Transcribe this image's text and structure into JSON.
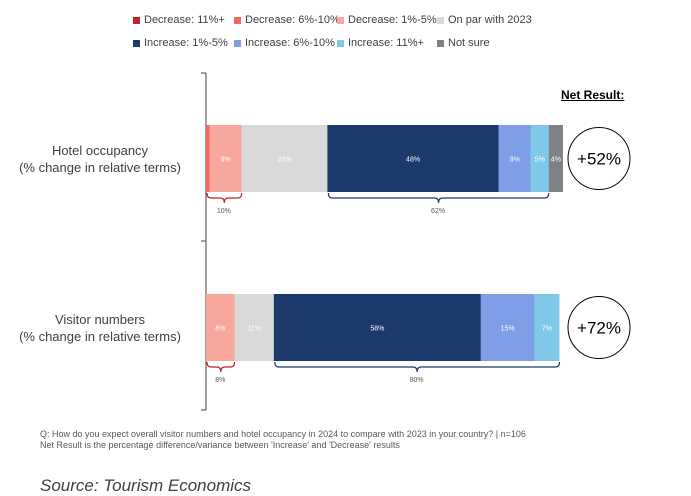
{
  "legend": [
    {
      "label": "Decrease: 11%+",
      "color": "#c0232b"
    },
    {
      "label": "Decrease: 6%-10%",
      "color": "#f26a5b"
    },
    {
      "label": "Decrease: 1%-5%",
      "color": "#f8a79c"
    },
    {
      "label": "On par with 2023",
      "color": "#d9d9d9"
    },
    {
      "label": "Increase: 1%-5%",
      "color": "#1b3a6b"
    },
    {
      "label": "Increase: 6%-10%",
      "color": "#7f9ee8"
    },
    {
      "label": "Increase: 11%+",
      "color": "#7fc8e8"
    },
    {
      "label": "Not sure",
      "color": "#7f8188"
    }
  ],
  "net_result_title": "Net Result:",
  "chart_data": {
    "type": "bar",
    "orientation": "horizontal",
    "stacked": true,
    "categories": [
      [
        "Hotel occupancy",
        "(% change in relative terms)"
      ],
      [
        "Visitor numbers",
        "(% change in relative terms)"
      ]
    ],
    "series": [
      {
        "name": "Decrease: 11%+",
        "values": [
          0,
          0
        ]
      },
      {
        "name": "Decrease: 6%-10%",
        "values": [
          1,
          0
        ]
      },
      {
        "name": "Decrease: 1%-5%",
        "values": [
          9,
          8
        ]
      },
      {
        "name": "On par with 2023",
        "values": [
          24,
          11
        ]
      },
      {
        "name": "Increase: 1%-5%",
        "values": [
          48,
          58
        ]
      },
      {
        "name": "Increase: 6%-10%",
        "values": [
          9,
          15
        ]
      },
      {
        "name": "Increase: 11%+",
        "values": [
          5,
          7
        ]
      },
      {
        "name": "Not sure",
        "values": [
          4,
          0
        ]
      }
    ],
    "segment_labels": [
      [
        "",
        "",
        "9%",
        "24%",
        "48%",
        "9%",
        "5%",
        "4%"
      ],
      [
        "",
        "",
        "8%",
        "11%",
        "58%",
        "15%",
        "7%",
        ""
      ]
    ],
    "decrease_totals": [
      "10%",
      "8%"
    ],
    "increase_totals": [
      "62%",
      "80%"
    ],
    "net_results": [
      "+52%",
      "+72%"
    ]
  },
  "notes": {
    "line1": "Q: How do you expect overall visitor numbers and hotel occupancy in 2024 to compare with    2023 in your country? |  n=106",
    "line2": "Net Result is the percentage difference/variance between 'Increase' and 'Decrease' results"
  },
  "source": "Source: Tourism Economics"
}
